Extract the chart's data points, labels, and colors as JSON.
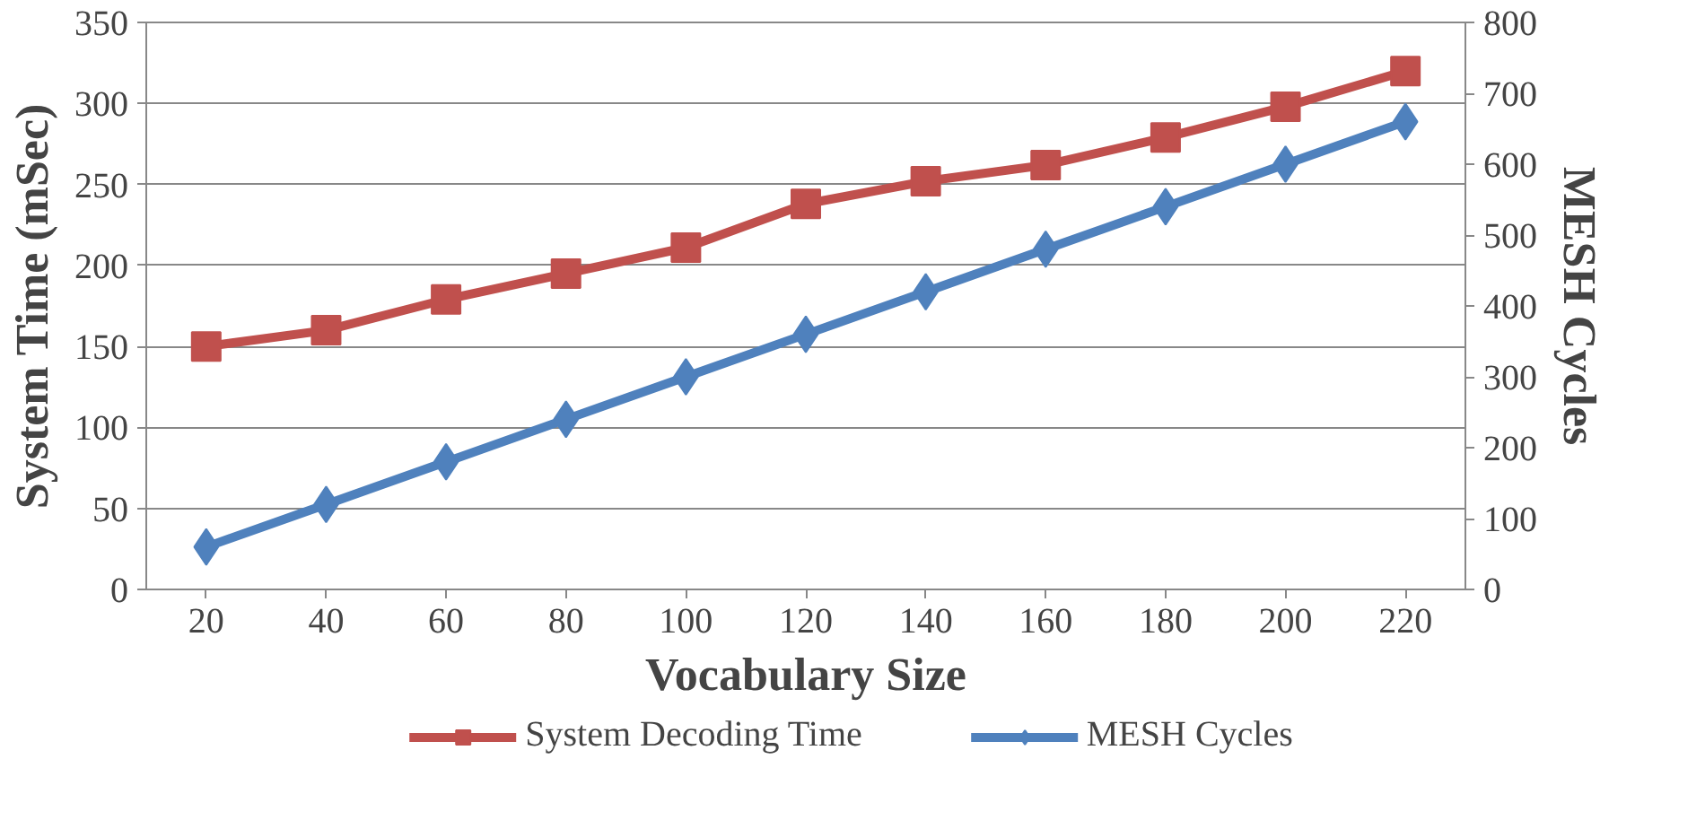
{
  "chart_data": {
    "type": "line",
    "xlabel": "Vocabulary Size",
    "ylabel": "System Time (mSec)",
    "y2label": "MESH Cycles",
    "categories": [
      "20",
      "40",
      "60",
      "80",
      "100",
      "120",
      "140",
      "160",
      "180",
      "200",
      "220"
    ],
    "series": [
      {
        "name": "System Decoding Time",
        "color": "#c0504d",
        "marker": "square",
        "values": [
          150,
          160,
          179,
          195,
          211,
          238,
          252,
          262,
          279,
          298,
          320
        ]
      },
      {
        "name": "MESH Cycles",
        "color": "#4f81bd",
        "marker": "diamond",
        "axis": "y2",
        "values": [
          60,
          120,
          180,
          240,
          300,
          360,
          420,
          480,
          540,
          600,
          660
        ]
      }
    ],
    "ylim": [
      0,
      350
    ],
    "yticks": [
      0,
      50,
      100,
      150,
      200,
      250,
      300,
      350
    ],
    "y2lim": [
      0,
      800
    ],
    "y2ticks": [
      0,
      100,
      200,
      300,
      400,
      500,
      600,
      700,
      800
    ],
    "grid": "y",
    "legend": "bottom",
    "line_style": "solid"
  }
}
